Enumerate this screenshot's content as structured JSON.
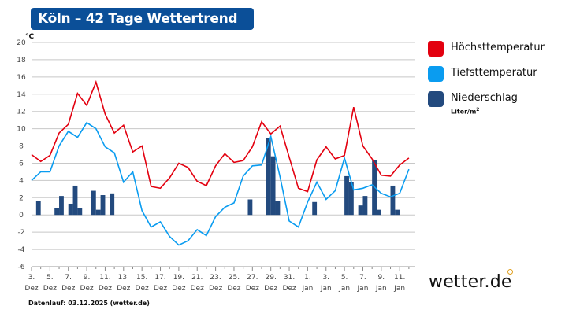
{
  "header": {
    "title": "Köln – 42 Tage Wettertrend"
  },
  "legend": {
    "items": [
      {
        "label": "Höchsttemperatur",
        "color": "#e3000f"
      },
      {
        "label": "Tiefsttemperatur",
        "color": "#0a9cf0"
      },
      {
        "label": "Niederschlag",
        "color": "#234a7e"
      }
    ],
    "precip_unit": "Liter/m",
    "precip_unit_sup": "2"
  },
  "footer": {
    "text": "Datenlauf: 03.12.2025 (wetter.de)"
  },
  "logo": {
    "text": "wetter.de"
  },
  "chart_data": {
    "type": "line",
    "y_unit": "°C",
    "ylim": [
      -6,
      20
    ],
    "yticks": [
      -6,
      -4,
      -2,
      0,
      2,
      4,
      6,
      8,
      10,
      12,
      14,
      16,
      18,
      20
    ],
    "grid": true,
    "legend_position": "right",
    "xticks": [
      {
        "day": 0,
        "label": "3.",
        "month": "Dez"
      },
      {
        "day": 2,
        "label": "5.",
        "month": "Dez"
      },
      {
        "day": 4,
        "label": "7.",
        "month": "Dez"
      },
      {
        "day": 6,
        "label": "9.",
        "month": "Dez"
      },
      {
        "day": 8,
        "label": "11.",
        "month": "Dez"
      },
      {
        "day": 10,
        "label": "13.",
        "month": "Dez"
      },
      {
        "day": 12,
        "label": "15.",
        "month": "Dez"
      },
      {
        "day": 14,
        "label": "17.",
        "month": "Dez"
      },
      {
        "day": 16,
        "label": "19.",
        "month": "Dez"
      },
      {
        "day": 18,
        "label": "21.",
        "month": "Dez"
      },
      {
        "day": 20,
        "label": "23.",
        "month": "Dez"
      },
      {
        "day": 22,
        "label": "25.",
        "month": "Dez"
      },
      {
        "day": 24,
        "label": "27.",
        "month": "Dez"
      },
      {
        "day": 26,
        "label": "29.",
        "month": "Dez"
      },
      {
        "day": 28,
        "label": "31.",
        "month": "Dez"
      },
      {
        "day": 30,
        "label": "1.",
        "month": "Jan"
      },
      {
        "day": 32,
        "label": "3.",
        "month": "Jan"
      },
      {
        "day": 34,
        "label": "5.",
        "month": "Jan"
      },
      {
        "day": 36,
        "label": "7.",
        "month": "Jan"
      },
      {
        "day": 38,
        "label": "9.",
        "month": "Jan"
      },
      {
        "day": 40,
        "label": "11.",
        "month": "Jan"
      }
    ],
    "series": [
      {
        "name": "Höchsttemperatur",
        "color": "#e3000f",
        "values": [
          7.0,
          6.2,
          6.9,
          9.5,
          10.5,
          14.1,
          12.7,
          15.4,
          11.7,
          9.5,
          10.4,
          7.3,
          8.0,
          3.3,
          3.1,
          4.3,
          6.0,
          5.5,
          3.9,
          3.4,
          5.7,
          7.1,
          6.1,
          6.3,
          7.9,
          10.8,
          9.4,
          10.3,
          6.7,
          3.1,
          2.7,
          6.4,
          7.9,
          6.5,
          6.9,
          12.5,
          8.0,
          6.5,
          4.6,
          4.5,
          5.8,
          6.6
        ]
      },
      {
        "name": "Tiefsttemperatur",
        "color": "#0a9cf0",
        "values": [
          4.0,
          5.0,
          5.0,
          8.0,
          9.7,
          9.0,
          10.7,
          10.0,
          7.9,
          7.2,
          3.8,
          5.0,
          0.5,
          -1.4,
          -0.8,
          -2.5,
          -3.5,
          -3.0,
          -1.7,
          -2.4,
          -0.2,
          0.9,
          1.4,
          4.5,
          5.7,
          5.8,
          9.1,
          4.4,
          -0.7,
          -1.4,
          1.5,
          3.8,
          1.8,
          2.8,
          6.6,
          2.9,
          3.1,
          3.5,
          2.5,
          2.1,
          2.5,
          5.3
        ]
      }
    ],
    "precipitation": {
      "name": "Niederschlag",
      "unit": "Liter/m²",
      "resolution": "half-day",
      "values": [
        0,
        1.6,
        0,
        0,
        0,
        0.8,
        2.2,
        0,
        1.3,
        3.4,
        0.8,
        0,
        0,
        2.8,
        0.6,
        2.3,
        0,
        2.5,
        0,
        0,
        0,
        0,
        0,
        0,
        0,
        0,
        0,
        0,
        0,
        0,
        0,
        0,
        0,
        0,
        0,
        0,
        0,
        0,
        0,
        0,
        0,
        0,
        0,
        0,
        0,
        0,
        0,
        1.8,
        0,
        0,
        0,
        8.9,
        6.8,
        1.6,
        0,
        0,
        0,
        0,
        0,
        0,
        0,
        1.5,
        0,
        0,
        0,
        0,
        0,
        0,
        4.5,
        3.8,
        0,
        1.1,
        2.2,
        0,
        6.4,
        0.6,
        0,
        0,
        3.4,
        0.6,
        0,
        0,
        0,
        0
      ]
    }
  }
}
